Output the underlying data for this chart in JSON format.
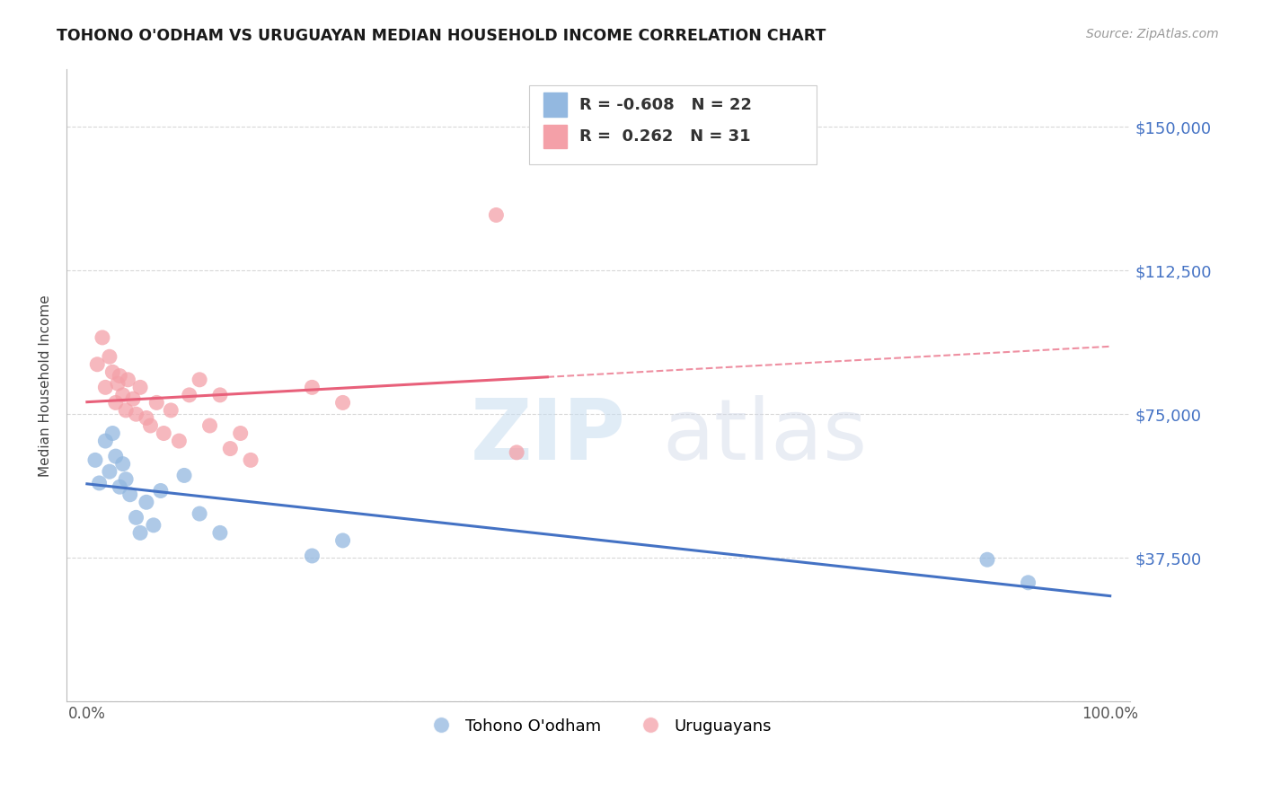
{
  "title": "TOHONO O'ODHAM VS URUGUAYAN MEDIAN HOUSEHOLD INCOME CORRELATION CHART",
  "source": "Source: ZipAtlas.com",
  "ylabel": "Median Household Income",
  "yticks": [
    0,
    37500,
    75000,
    112500,
    150000
  ],
  "ytick_labels": [
    "",
    "$37,500",
    "$75,000",
    "$112,500",
    "$150,000"
  ],
  "xlim": [
    -0.02,
    1.02
  ],
  "ylim": [
    15000,
    165000
  ],
  "background_color": "#ffffff",
  "grid_color": "#d8d8d8",
  "tohono_color": "#93b8e0",
  "uruguayan_color": "#f4a0a8",
  "tohono_line_color": "#4472c4",
  "uruguayan_line_color": "#e8607a",
  "legend_R1": "-0.608",
  "legend_N1": "22",
  "legend_R2": "0.262",
  "legend_N2": "31",
  "legend_label1": "Tohono O'odham",
  "legend_label2": "Uruguayans",
  "tohono_x": [
    0.008,
    0.012,
    0.018,
    0.022,
    0.025,
    0.028,
    0.032,
    0.035,
    0.038,
    0.042,
    0.048,
    0.052,
    0.058,
    0.065,
    0.072,
    0.095,
    0.11,
    0.13,
    0.22,
    0.25,
    0.88,
    0.92
  ],
  "tohono_y": [
    63000,
    57000,
    68000,
    60000,
    70000,
    64000,
    56000,
    62000,
    58000,
    54000,
    48000,
    44000,
    52000,
    46000,
    55000,
    59000,
    49000,
    44000,
    38000,
    42000,
    37000,
    31000
  ],
  "uruguayan_x": [
    0.01,
    0.015,
    0.018,
    0.022,
    0.025,
    0.028,
    0.03,
    0.032,
    0.035,
    0.038,
    0.04,
    0.045,
    0.048,
    0.052,
    0.058,
    0.062,
    0.068,
    0.075,
    0.082,
    0.09,
    0.1,
    0.11,
    0.12,
    0.13,
    0.14,
    0.15,
    0.16,
    0.22,
    0.25,
    0.4,
    0.42
  ],
  "uruguayan_y": [
    88000,
    95000,
    82000,
    90000,
    86000,
    78000,
    83000,
    85000,
    80000,
    76000,
    84000,
    79000,
    75000,
    82000,
    74000,
    72000,
    78000,
    70000,
    76000,
    68000,
    80000,
    84000,
    72000,
    80000,
    66000,
    70000,
    63000,
    82000,
    78000,
    127000,
    65000
  ]
}
